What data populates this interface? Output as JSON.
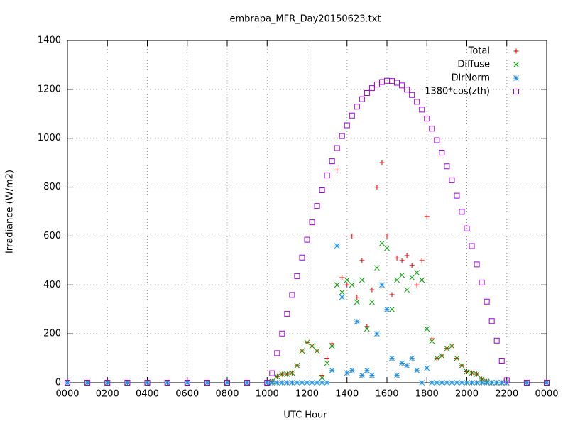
{
  "chart_data": {
    "type": "scatter",
    "title": "embrapa_MFR_Day20150623.txt",
    "xlabel": "UTC Hour",
    "ylabel": "Irradiance (W/m2)",
    "x": [
      0,
      1,
      2,
      3,
      4,
      5,
      6,
      7,
      8,
      9,
      10,
      10.25,
      10.5,
      10.75,
      11,
      11.25,
      11.5,
      11.75,
      12,
      12.25,
      12.5,
      12.75,
      13,
      13.25,
      13.5,
      13.75,
      14,
      14.25,
      14.5,
      14.75,
      15,
      15.25,
      15.5,
      15.75,
      16,
      16.25,
      16.5,
      16.75,
      17,
      17.25,
      17.5,
      17.75,
      18,
      18.25,
      18.5,
      18.75,
      19,
      19.25,
      19.5,
      19.75,
      20,
      20.25,
      20.5,
      20.75,
      21,
      21.25,
      21.5,
      21.75,
      22,
      23,
      24
    ],
    "series": [
      {
        "name": "Total",
        "color": "#e00000",
        "marker": "plus",
        "values": [
          0,
          0,
          0,
          0,
          0,
          0,
          0,
          0,
          0,
          0,
          0,
          5,
          25,
          35,
          35,
          40,
          70,
          130,
          165,
          150,
          130,
          30,
          100,
          160,
          870,
          430,
          400,
          600,
          350,
          500,
          230,
          380,
          800,
          900,
          600,
          360,
          510,
          500,
          520,
          480,
          400,
          500,
          680,
          180,
          100,
          110,
          140,
          150,
          100,
          70,
          45,
          40,
          35,
          15,
          5,
          0,
          0,
          0,
          0,
          0,
          0
        ]
      },
      {
        "name": "Diffuse",
        "color": "#00a000",
        "marker": "cross",
        "values": [
          0,
          0,
          0,
          0,
          0,
          0,
          0,
          0,
          0,
          0,
          0,
          5,
          25,
          35,
          35,
          40,
          70,
          130,
          165,
          150,
          130,
          20,
          80,
          150,
          400,
          370,
          420,
          400,
          330,
          420,
          220,
          330,
          470,
          570,
          550,
          300,
          420,
          440,
          380,
          430,
          450,
          420,
          220,
          170,
          100,
          110,
          140,
          150,
          100,
          70,
          45,
          40,
          35,
          15,
          5,
          0,
          0,
          0,
          0,
          0,
          0
        ]
      },
      {
        "name": "DirNorm",
        "color": "#1c8ce0",
        "marker": "star",
        "values": [
          0,
          0,
          0,
          0,
          0,
          0,
          0,
          0,
          0,
          0,
          0,
          0,
          0,
          0,
          0,
          0,
          0,
          0,
          0,
          0,
          0,
          0,
          0,
          50,
          560,
          350,
          40,
          50,
          250,
          30,
          50,
          30,
          200,
          400,
          300,
          100,
          30,
          80,
          70,
          100,
          50,
          0,
          60,
          0,
          0,
          0,
          0,
          0,
          0,
          0,
          0,
          0,
          0,
          0,
          0,
          0,
          0,
          0,
          0,
          0,
          0
        ]
      },
      {
        "name": "1380*cos(zth)",
        "color": "#a000e0",
        "marker": "square",
        "values": [
          0,
          0,
          0,
          0,
          0,
          0,
          0,
          0,
          0,
          0,
          0,
          39,
          121,
          201,
          282,
          359,
          436,
          512,
          585,
          656,
          723,
          787,
          848,
          906,
          960,
          1009,
          1053,
          1093,
          1129,
          1160,
          1185,
          1205,
          1220,
          1230,
          1235,
          1234,
          1227,
          1216,
          1199,
          1177,
          1149,
          1117,
          1080,
          1039,
          992,
          941,
          885,
          828,
          765,
          699,
          631,
          559,
          484,
          410,
          332,
          252,
          172,
          90,
          10,
          0,
          0
        ]
      }
    ],
    "xlim": [
      0,
      24
    ],
    "xticks": [
      {
        "value": 0,
        "label": "0000"
      },
      {
        "value": 2,
        "label": "0200"
      },
      {
        "value": 4,
        "label": "0400"
      },
      {
        "value": 6,
        "label": "0600"
      },
      {
        "value": 8,
        "label": "0800"
      },
      {
        "value": 10,
        "label": "1000"
      },
      {
        "value": 12,
        "label": "1200"
      },
      {
        "value": 14,
        "label": "1400"
      },
      {
        "value": 16,
        "label": "1600"
      },
      {
        "value": 18,
        "label": "1800"
      },
      {
        "value": 20,
        "label": "2000"
      },
      {
        "value": 22,
        "label": "2200"
      },
      {
        "value": 24,
        "label": "0000"
      }
    ],
    "ylim": [
      0,
      1400
    ],
    "yticks": [
      0,
      200,
      400,
      600,
      800,
      1000,
      1200,
      1400
    ],
    "grid": true,
    "legend": "top-right"
  }
}
